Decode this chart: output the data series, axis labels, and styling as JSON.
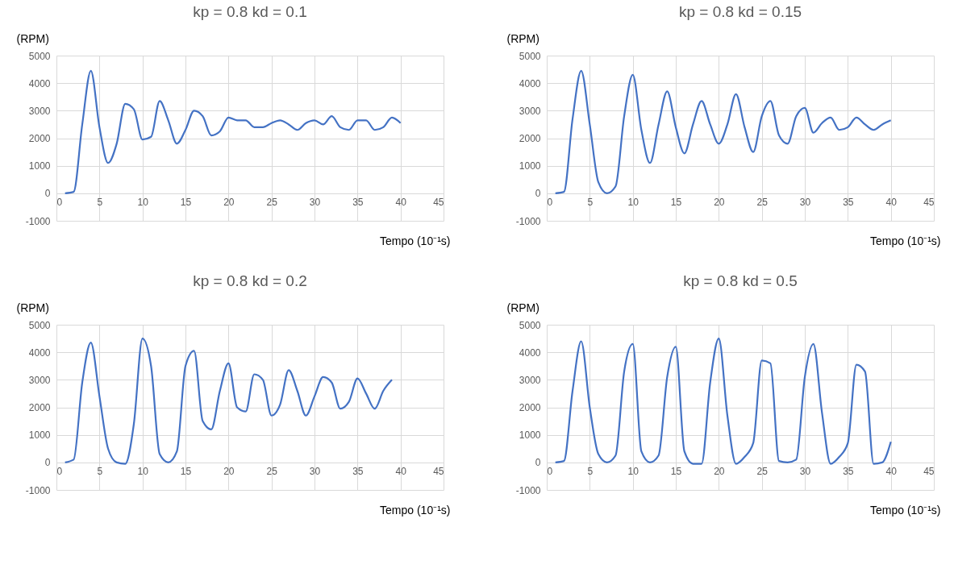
{
  "chart_data": [
    {
      "type": "line",
      "title": "kp = 0.8 kd = 0.1",
      "ylabel": "(RPM)",
      "xlabel": "Tempo (10⁻¹s)",
      "xlim": [
        0,
        45
      ],
      "xticks": [
        0,
        5,
        10,
        15,
        20,
        25,
        30,
        35,
        40,
        45
      ],
      "ylim": [
        -1000,
        5000
      ],
      "yticks": [
        -1000,
        0,
        1000,
        2000,
        3000,
        4000,
        5000
      ],
      "grid": true,
      "x": [
        1,
        2,
        3,
        4,
        5,
        6,
        7,
        8,
        9,
        10,
        11,
        12,
        13,
        14,
        15,
        16,
        17,
        18,
        19,
        20,
        21,
        22,
        23,
        24,
        25,
        26,
        27,
        28,
        29,
        30,
        31,
        32,
        33,
        34,
        35,
        36,
        37,
        38,
        39,
        40
      ],
      "series": [
        {
          "color": "#4472c4",
          "values": [
            0,
            50,
            2500,
            4450,
            2400,
            1100,
            1800,
            3250,
            3050,
            1950,
            2050,
            3350,
            2650,
            1800,
            2300,
            3000,
            2800,
            2100,
            2250,
            2750,
            2650,
            2650,
            2400,
            2400,
            2550,
            2650,
            2500,
            2300,
            2550,
            2650,
            2500,
            2800,
            2400,
            2300,
            2650,
            2650,
            2300,
            2400,
            2750,
            2550
          ]
        }
      ]
    },
    {
      "type": "line",
      "title": "kp = 0.8 kd = 0.15",
      "ylabel": "(RPM)",
      "xlabel": "Tempo (10⁻¹s)",
      "xlim": [
        0,
        45
      ],
      "xticks": [
        0,
        5,
        10,
        15,
        20,
        25,
        30,
        35,
        40,
        45
      ],
      "ylim": [
        -1000,
        5000
      ],
      "yticks": [
        -1000,
        0,
        1000,
        2000,
        3000,
        4000,
        5000
      ],
      "grid": true,
      "x": [
        1,
        2,
        3,
        4,
        5,
        6,
        7,
        8,
        9,
        10,
        11,
        12,
        13,
        14,
        15,
        16,
        17,
        18,
        19,
        20,
        21,
        22,
        23,
        24,
        25,
        26,
        27,
        28,
        29,
        30,
        31,
        32,
        33,
        34,
        35,
        36,
        37,
        38,
        39,
        40
      ],
      "series": [
        {
          "color": "#4472c4",
          "values": [
            0,
            50,
            2700,
            4450,
            2500,
            400,
            0,
            250,
            2800,
            4300,
            2300,
            1100,
            2500,
            3700,
            2400,
            1450,
            2500,
            3350,
            2500,
            1800,
            2500,
            3600,
            2400,
            1500,
            2800,
            3350,
            2100,
            1800,
            2800,
            3100,
            2200,
            2550,
            2750,
            2300,
            2400,
            2750,
            2500,
            2300,
            2500,
            2650
          ]
        }
      ]
    },
    {
      "type": "line",
      "title": "kp = 0.8 kd = 0.2",
      "ylabel": "(RPM)",
      "xlabel": "Tempo (10⁻¹s)",
      "xlim": [
        0,
        45
      ],
      "xticks": [
        0,
        5,
        10,
        15,
        20,
        25,
        30,
        35,
        40,
        45
      ],
      "ylim": [
        -1000,
        5000
      ],
      "yticks": [
        -1000,
        0,
        1000,
        2000,
        3000,
        4000,
        5000
      ],
      "grid": true,
      "x": [
        1,
        2,
        3,
        4,
        5,
        6,
        7,
        8,
        9,
        10,
        11,
        12,
        13,
        14,
        15,
        16,
        17,
        18,
        19,
        20,
        21,
        22,
        23,
        24,
        25,
        26,
        27,
        28,
        29,
        30,
        31,
        32,
        33,
        34,
        35,
        36,
        37,
        38,
        39
      ],
      "series": [
        {
          "color": "#4472c4",
          "values": [
            0,
            100,
            2900,
            4350,
            2400,
            500,
            0,
            -50,
            1400,
            4500,
            3500,
            300,
            0,
            400,
            3500,
            4050,
            1500,
            1200,
            2600,
            3600,
            2000,
            1850,
            3200,
            3000,
            1700,
            2100,
            3350,
            2600,
            1700,
            2400,
            3100,
            2900,
            1950,
            2200,
            3050,
            2500,
            1950,
            2600,
            3000
          ]
        }
      ]
    },
    {
      "type": "line",
      "title": "kp = 0.8 kd = 0.5",
      "ylabel": "(RPM)",
      "xlabel": "Tempo (10⁻¹s)",
      "xlim": [
        0,
        45
      ],
      "xticks": [
        0,
        5,
        10,
        15,
        20,
        25,
        30,
        35,
        40,
        45
      ],
      "ylim": [
        -1000,
        5000
      ],
      "yticks": [
        -1000,
        0,
        1000,
        2000,
        3000,
        4000,
        5000
      ],
      "grid": true,
      "x": [
        1,
        2,
        3,
        4,
        5,
        6,
        7,
        8,
        9,
        10,
        11,
        12,
        13,
        14,
        15,
        16,
        17,
        18,
        19,
        20,
        21,
        22,
        23,
        24,
        25,
        26,
        27,
        28,
        29,
        30,
        31,
        32,
        33,
        34,
        35,
        36,
        37,
        38,
        39,
        40
      ],
      "series": [
        {
          "color": "#4472c4",
          "values": [
            0,
            50,
            2600,
            4400,
            2000,
            300,
            0,
            250,
            3300,
            4300,
            400,
            0,
            250,
            3100,
            4200,
            400,
            -50,
            -50,
            2900,
            4500,
            1700,
            -50,
            200,
            700,
            3700,
            3600,
            50,
            0,
            100,
            3100,
            4300,
            1800,
            -50,
            200,
            700,
            3550,
            3300,
            -50,
            0,
            750
          ]
        }
      ]
    }
  ]
}
